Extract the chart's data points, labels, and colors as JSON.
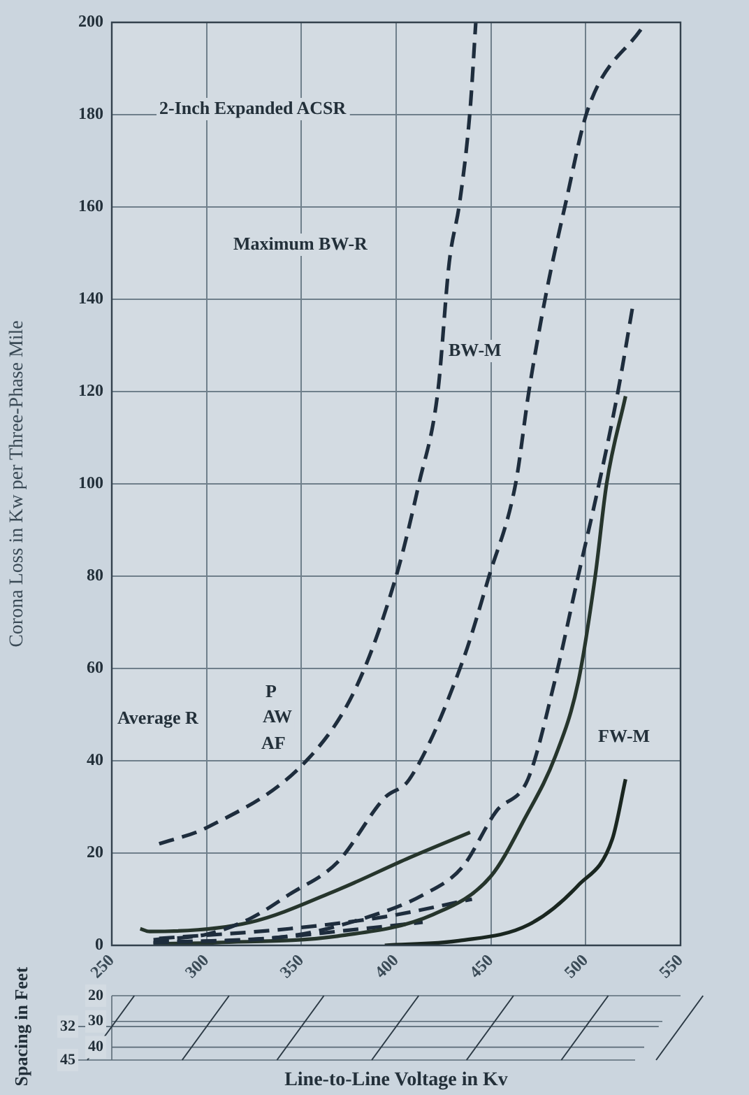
{
  "chart_data": {
    "type": "line",
    "xlabel": "Line-to-Line Voltage in Kv",
    "ylabel": "Corona Loss in Kw per Three-Phase Mile",
    "xlim": [
      250,
      550
    ],
    "xticks": [
      250,
      300,
      350,
      400,
      450,
      500,
      550
    ],
    "ylim": [
      0,
      200
    ],
    "yticks": [
      0,
      20,
      40,
      60,
      80,
      100,
      120,
      140,
      160,
      180,
      200
    ],
    "grid": true,
    "legend": false,
    "marker": "none",
    "series": [
      {
        "color": "#1e2d3d",
        "line_style": "dashed",
        "x": [
          275,
          300,
          354,
          379,
          400,
          412,
          422,
          428,
          433.5,
          439,
          442
        ],
        "values": [
          22,
          25.5,
          40.6,
          56,
          80,
          100,
          120,
          148,
          161,
          181,
          200
        ]
      },
      {
        "color": "#1e2d3d",
        "line_style": "dashed",
        "x": [
          272,
          300,
          323,
          343.5,
          369,
          394,
          407,
          435,
          449,
          463,
          470,
          479,
          489.5,
          501,
          530
        ],
        "values": [
          1.2,
          2.4,
          5.8,
          11,
          18,
          32,
          36,
          61.5,
          80,
          100,
          120,
          141,
          161,
          181,
          199
        ]
      },
      {
        "color": "#1e2d3d",
        "line_style": "dashed",
        "x": [
          272,
          343.5,
          384,
          414.5,
          435,
          452.7,
          469.5,
          483.5,
          496,
          507,
          517,
          525
        ],
        "values": [
          0.6,
          2,
          6,
          11,
          17,
          29,
          36,
          57,
          80,
          100,
          120,
          139
        ]
      },
      {
        "color": "#26352c",
        "line_style": "solid",
        "x": [
          272,
          305,
          369,
          419.5,
          450,
          468,
          484,
          496,
          505,
          511,
          521
        ],
        "values": [
          0.3,
          0.6,
          2,
          6.7,
          15,
          27.6,
          41,
          57,
          80,
          100,
          119
        ]
      },
      {
        "color": "#1a2620",
        "line_style": "solid",
        "x": [
          394,
          433,
          470,
          496,
          514,
          521
        ],
        "values": [
          0,
          1,
          4.5,
          13,
          23,
          36
        ]
      },
      {
        "color": "#26352c",
        "line_style": "solid",
        "x": [
          265,
          270,
          323,
          369,
          407,
          439
        ],
        "values": [
          3.6,
          3,
          5,
          12,
          19,
          24.5
        ]
      },
      {
        "color": "#1e2d3d",
        "line_style": "dashed",
        "x": [
          275,
          343.5,
          394,
          440
        ],
        "values": [
          1.5,
          3.6,
          6.2,
          10
        ]
      },
      {
        "color": "#1e2d3d",
        "line_style": "dashed",
        "x": [
          272,
          331,
          382,
          414
        ],
        "values": [
          0.6,
          1.5,
          3.6,
          5
        ]
      }
    ],
    "annotations": [
      "2-Inch Expanded ACSR",
      "Maximum BW-R",
      "BW-M",
      "FW-M",
      "Average R",
      "P",
      "AW",
      "AF",
      "Spacing in Feet",
      "20",
      "30",
      "32",
      "40",
      "45"
    ]
  }
}
